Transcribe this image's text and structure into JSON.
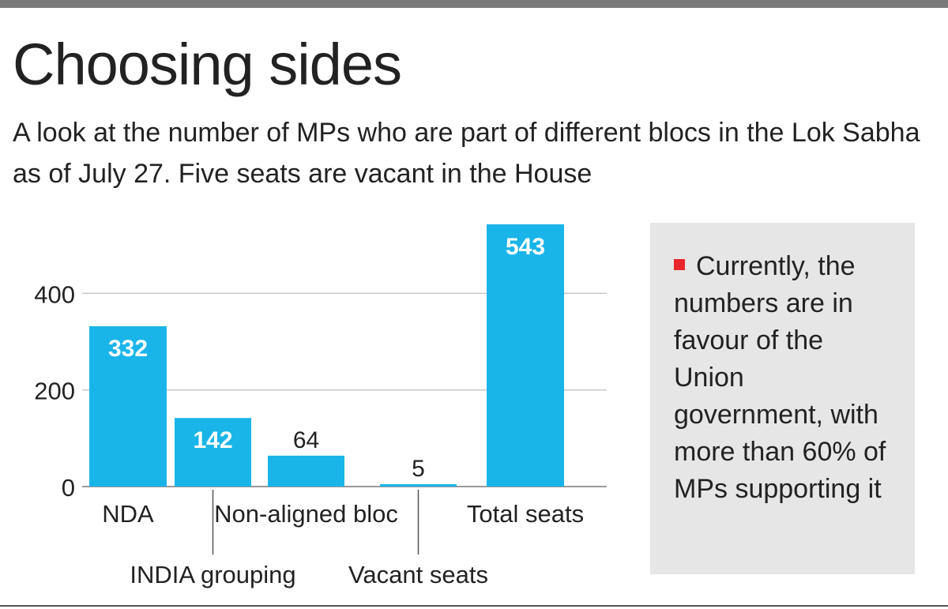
{
  "title": "Choosing sides",
  "subtitle": "A look at the number of MPs who are part of different blocs in the Lok Sabha as of July 27. Five seats are vacant in the House",
  "note": "Currently, the numbers are in favour of the Union government, with more than 60% of MPs supporting it",
  "colors": {
    "bar": "#1ab5e8",
    "accent_bullet": "#e8262b",
    "grid": "#c8c8c8",
    "note_bg": "#e6e6e6"
  },
  "chart_data": {
    "type": "bar",
    "categories": [
      "NDA",
      "INDIA grouping",
      "Non-aligned bloc",
      "Vacant seats",
      "Total seats"
    ],
    "values": [
      332,
      142,
      64,
      5,
      543
    ],
    "label_inside": [
      true,
      true,
      false,
      false,
      true
    ],
    "label_row": [
      0,
      1,
      0,
      1,
      0
    ],
    "ylim": [
      0,
      543
    ],
    "yticks": [
      0,
      200,
      400
    ],
    "grid": true,
    "legend": "none"
  }
}
